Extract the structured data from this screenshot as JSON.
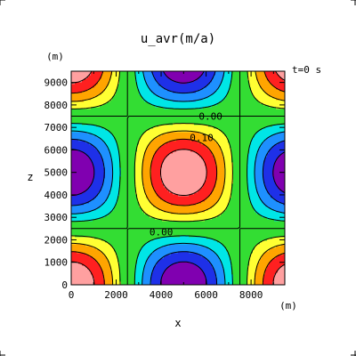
{
  "chart_data": {
    "type": "heatmap",
    "title": "u_avr(m/a)",
    "xlabel": "x",
    "ylabel": "z",
    "x_unit": "(m)",
    "y_unit": "(m)",
    "time_label": "t=0  s",
    "xlim": [
      0,
      9500
    ],
    "ylim": [
      0,
      9500
    ],
    "x_ticks": [
      "0",
      "2000",
      "4000",
      "6000",
      "8000"
    ],
    "x_tick_values": [
      0,
      2000,
      4000,
      6000,
      8000
    ],
    "y_ticks": [
      "0",
      "1000",
      "2000",
      "3000",
      "4000",
      "5000",
      "6000",
      "7000",
      "8000",
      "9000"
    ],
    "y_tick_values": [
      0,
      1000,
      2000,
      3000,
      4000,
      5000,
      6000,
      7000,
      8000,
      9000
    ],
    "field": {
      "amplitude": 0.5,
      "wavelength": 10000,
      "form": "amplitude * cos(2*pi*x/wavelength) * cos(2*pi*z/wavelength), sign flipped so center (5000,5000) is positive"
    },
    "contour_levels": [
      -0.4,
      -0.3,
      -0.2,
      -0.1,
      0.0,
      0.1,
      0.2,
      0.3,
      0.4
    ],
    "contour_labels": [
      {
        "text": "0.00",
        "x": 6200,
        "z": 7500
      },
      {
        "text": "0.10",
        "x": 5800,
        "z": 6550
      },
      {
        "text": "0.00",
        "x": 4000,
        "z": 2350
      }
    ],
    "colors": {
      "below_-0.4": "#8000b0",
      "-0.4_-0.3": "#1e30e8",
      "-0.3_-0.2": "#1e90ff",
      "-0.2_-0.1": "#00e6e6",
      "-0.1_0.1": "#33dd33",
      "0.1_0.2": "#ffff33",
      "0.2_0.3": "#ffa500",
      "0.3_0.4": "#ff2020",
      "above_0.4": "#ffa0a0"
    }
  }
}
